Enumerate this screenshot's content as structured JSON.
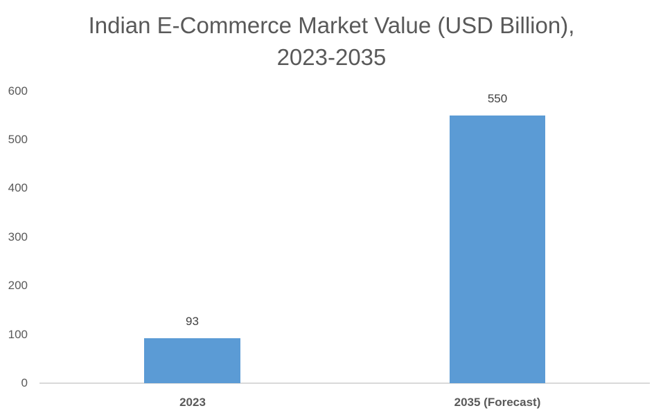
{
  "chart_data": {
    "type": "bar",
    "title": "Indian E-Commerce Market Value (USD Billion), 2023-2035",
    "title_lines": [
      "Indian E-Commerce Market Value (USD Billion),",
      "2023-2035"
    ],
    "categories": [
      "2023",
      "2035 (Forecast)"
    ],
    "values": [
      93,
      550
    ],
    "data_labels": [
      "93",
      "550"
    ],
    "xlabel": "",
    "ylabel": "",
    "ylim": [
      0,
      600
    ],
    "yticks": [
      "0",
      "100",
      "200",
      "300",
      "400",
      "500",
      "600"
    ],
    "grid": false,
    "legend": null,
    "bar_color": "#5b9bd5"
  }
}
